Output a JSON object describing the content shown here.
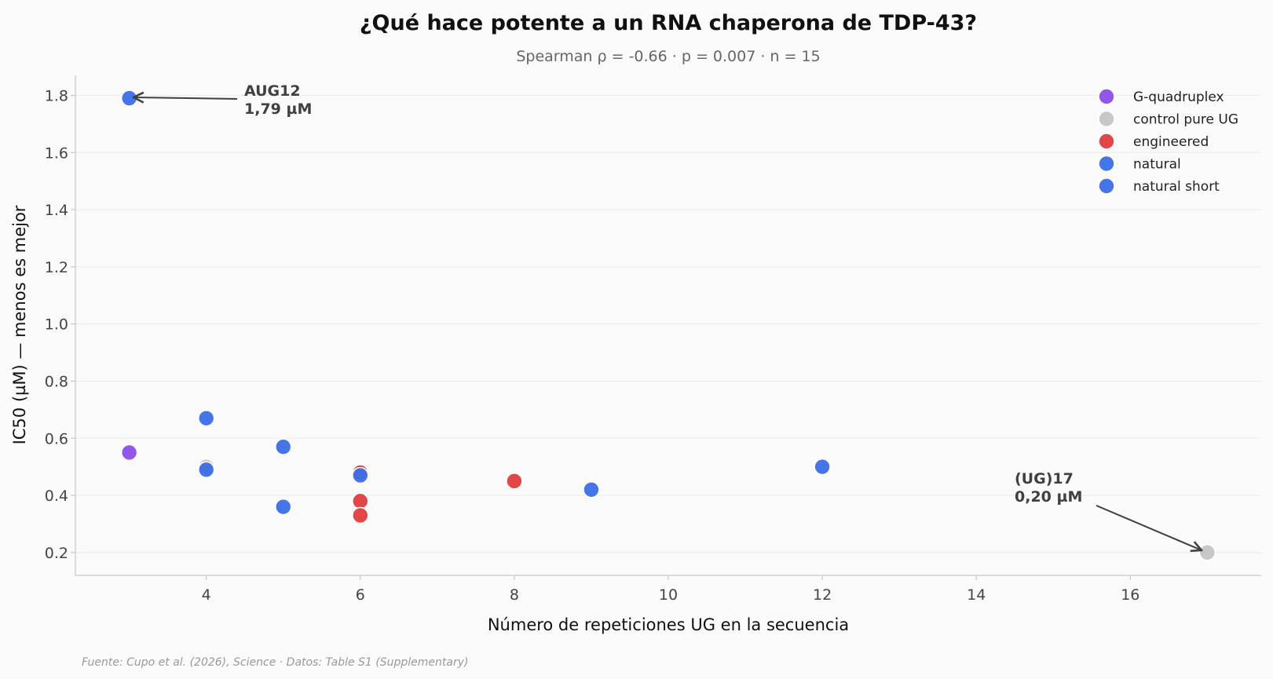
{
  "chart_data": {
    "type": "scatter",
    "title": "¿Qué hace potente a un RNA chaperona de TDP-43?",
    "subtitle": "Spearman ρ = -0.66 · p = 0.007 · n = 15",
    "xlabel": "Número de repeticiones UG en la secuencia",
    "ylabel": "IC50 (µM) — menos es mejor",
    "xlim": [
      2.3,
      17.7
    ],
    "ylim": [
      0.12,
      1.87
    ],
    "xticks": [
      4,
      6,
      8,
      10,
      12,
      14,
      16
    ],
    "yticks": [
      0.2,
      0.4,
      0.6,
      0.8,
      1.0,
      1.2,
      1.4,
      1.6,
      1.8
    ],
    "grid": "horizontal",
    "legend_position": "top-right",
    "series": [
      {
        "name": "G-quadruplex",
        "color": "#8b4ee8",
        "points": [
          {
            "x": 3,
            "y": 0.55
          }
        ]
      },
      {
        "name": "control pure UG",
        "color": "#c4c4c4",
        "points": [
          {
            "x": 4,
            "y": 0.5
          },
          {
            "x": 17,
            "y": 0.2
          }
        ]
      },
      {
        "name": "engineered",
        "color": "#e03c3c",
        "points": [
          {
            "x": 6,
            "y": 0.48
          },
          {
            "x": 6,
            "y": 0.38
          },
          {
            "x": 6,
            "y": 0.33
          },
          {
            "x": 8,
            "y": 0.45
          }
        ]
      },
      {
        "name": "natural",
        "color": "#3b6fe8",
        "points": [
          {
            "x": 3,
            "y": 1.79
          },
          {
            "x": 4,
            "y": 0.67
          },
          {
            "x": 5,
            "y": 0.57
          },
          {
            "x": 5,
            "y": 0.36
          },
          {
            "x": 9,
            "y": 0.42
          },
          {
            "x": 12,
            "y": 0.5
          }
        ]
      },
      {
        "name": "natural short",
        "color": "#3b6fe8",
        "points": [
          {
            "x": 4,
            "y": 0.49
          },
          {
            "x": 6,
            "y": 0.47
          }
        ]
      }
    ],
    "annotations": [
      {
        "lines": [
          "AUG12",
          "1,79 µM"
        ],
        "x": 3,
        "y": 1.79
      },
      {
        "lines": [
          "(UG)17",
          "0,20 µM"
        ],
        "x": 17,
        "y": 0.2
      }
    ],
    "source": "Fuente: Cupo et al. (2026), Science · Datos: Table S1 (Supplementary)"
  }
}
